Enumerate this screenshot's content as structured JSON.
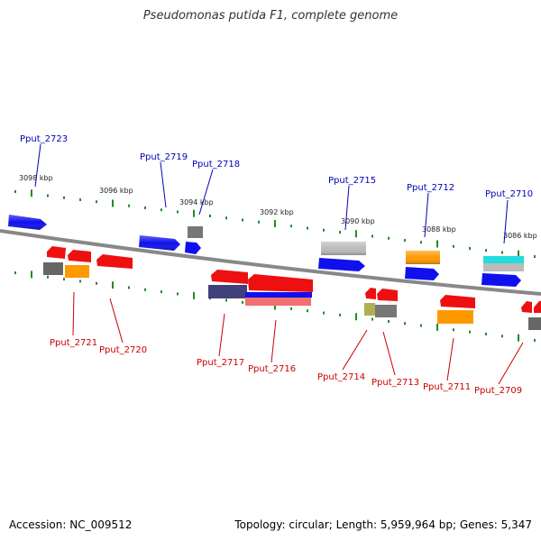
{
  "title": "Pseudomonas putida F1, complete genome",
  "accession": "Accession: NC_009512",
  "topology": "Topology: circular; Length: 5,959,964 bp; Genes: 5,347",
  "colors": {
    "blue": "#1010ee",
    "red": "#ee1010",
    "orange": "#ff9900",
    "gray": "#777777",
    "lightgray": "#bbbbbb",
    "cyan": "#22dddd",
    "navy": "#40407a",
    "olive": "#b0b050",
    "pink": "#f07070",
    "green": "#228b22",
    "label_top": "#0000bb",
    "label_bottom": "#cc0000",
    "backbone": "#888888"
  },
  "scale_labels": [
    "3098 kbp",
    "3096 kbp",
    "3094 kbp",
    "3092 kbp",
    "3090 kbp",
    "3088 kbp",
    "3086 kbp"
  ],
  "gene_labels": {
    "top": [
      "Pput_2723",
      "Pput_2719",
      "Pput_2718",
      "Pput_2715",
      "Pput_2712",
      "Pput_2710"
    ],
    "bottom": [
      "Pput_2721",
      "Pput_2720",
      "Pput_2717",
      "Pput_2716",
      "Pput_2714",
      "Pput_2713",
      "Pput_2711",
      "Pput_2709"
    ]
  }
}
